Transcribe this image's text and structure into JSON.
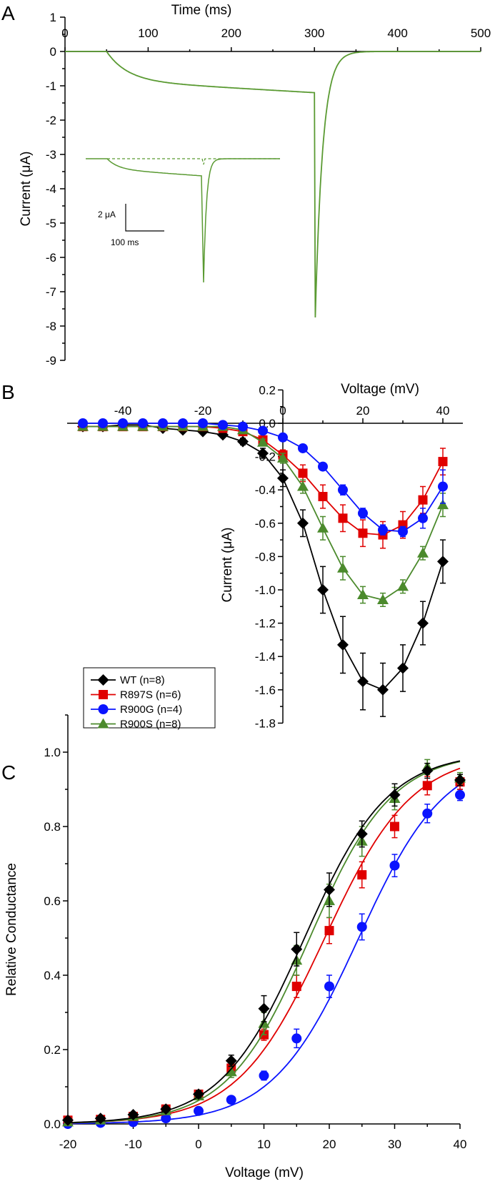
{
  "colors": {
    "WT": "#000000",
    "R897S": "#e00000",
    "R900G": "#0a14ff",
    "R900S": "#4b8a2c",
    "trace": "#5a9a32"
  },
  "chart_data": [
    {
      "panel": "A",
      "type": "line",
      "xlabel": "Time (ms)",
      "ylabel": "Current  (μA)",
      "xlim": [
        0,
        500
      ],
      "ylim": [
        -9,
        1
      ],
      "xticks": [
        "0",
        "100",
        "200",
        "300",
        "400",
        "500"
      ],
      "yticks": [
        "1",
        "0",
        "-1",
        "-2",
        "-3",
        "-4",
        "-5",
        "-6",
        "-7",
        "-8",
        "-9"
      ],
      "trace": {
        "onset_ms": 50,
        "step_end_ms": 300,
        "current_at_100ms": -0.85,
        "current_at_300ms": -1.2,
        "tail_peak": -7.75
      },
      "inset": {
        "scale_y_label": "2 μA",
        "scale_x_label": "100 ms"
      }
    },
    {
      "panel": "B",
      "type": "line",
      "xlabel": "Voltage (mV)",
      "ylabel": "Current (μA)",
      "xlim": [
        -50,
        45
      ],
      "ylim": [
        -1.8,
        0.2
      ],
      "xticks": [
        "-40",
        "-20",
        "0",
        "20",
        "40"
      ],
      "yticks": [
        "0.2",
        "0.0",
        "-0.2",
        "-0.4",
        "-0.6",
        "-0.8",
        "-1.0",
        "-1.2",
        "-1.4",
        "-1.6",
        "-1.8"
      ],
      "x": [
        -50,
        -45,
        -40,
        -35,
        -30,
        -25,
        -20,
        -15,
        -10,
        -5,
        0,
        5,
        10,
        15,
        20,
        25,
        30,
        35,
        40
      ],
      "legend_position": "bottom-left",
      "series": [
        {
          "name": "WT (n=8)",
          "key": "WT",
          "marker": "diamond",
          "values": [
            -0.02,
            -0.02,
            -0.01,
            -0.01,
            -0.03,
            -0.04,
            -0.05,
            -0.07,
            -0.11,
            -0.18,
            -0.33,
            -0.6,
            -1.0,
            -1.33,
            -1.55,
            -1.6,
            -1.47,
            -1.2,
            -0.83
          ],
          "errors": [
            0.01,
            0.01,
            0.01,
            0.01,
            0.01,
            0.01,
            0.01,
            0.01,
            0.02,
            0.03,
            0.05,
            0.08,
            0.14,
            0.17,
            0.17,
            0.16,
            0.14,
            0.13,
            0.13
          ]
        },
        {
          "name": "R897S (n=6)",
          "key": "R897S",
          "marker": "square",
          "values": [
            -0.02,
            -0.02,
            -0.02,
            -0.02,
            -0.02,
            -0.02,
            -0.02,
            -0.03,
            -0.05,
            -0.1,
            -0.19,
            -0.3,
            -0.44,
            -0.57,
            -0.66,
            -0.67,
            -0.61,
            -0.46,
            -0.23
          ],
          "errors": [
            0.01,
            0.01,
            0.01,
            0.01,
            0.01,
            0.01,
            0.01,
            0.01,
            0.01,
            0.02,
            0.03,
            0.05,
            0.07,
            0.08,
            0.08,
            0.08,
            0.08,
            0.08,
            0.08
          ]
        },
        {
          "name": "R900G (n=4)",
          "key": "R900G",
          "marker": "circle",
          "values": [
            0,
            0,
            0,
            0,
            0,
            0,
            0,
            -0.01,
            -0.02,
            -0.045,
            -0.085,
            -0.15,
            -0.26,
            -0.4,
            -0.54,
            -0.64,
            -0.65,
            -0.57,
            -0.38
          ],
          "errors": [
            0.005,
            0.005,
            0.005,
            0.005,
            0.005,
            0.005,
            0.005,
            0.005,
            0.01,
            0.01,
            0.01,
            0.01,
            0.02,
            0.03,
            0.03,
            0.03,
            0.03,
            0.06,
            0.1
          ]
        },
        {
          "name": "R900S (n=8)",
          "key": "R900S",
          "marker": "triangle",
          "values": [
            -0.02,
            -0.02,
            -0.02,
            -0.02,
            -0.02,
            -0.02,
            -0.02,
            -0.02,
            -0.04,
            -0.115,
            -0.21,
            -0.38,
            -0.63,
            -0.87,
            -1.03,
            -1.06,
            -0.98,
            -0.78,
            -0.49
          ],
          "errors": [
            0.01,
            0.01,
            0.01,
            0.01,
            0.01,
            0.01,
            0.01,
            0.01,
            0.01,
            0.02,
            0.03,
            0.04,
            0.07,
            0.07,
            0.05,
            0.04,
            0.04,
            0.04,
            0.07
          ]
        }
      ]
    },
    {
      "panel": "C",
      "type": "scatter",
      "xlabel": "Voltage (mV)",
      "ylabel": "Relative Conductance",
      "xlim": [
        -20,
        40
      ],
      "ylim": [
        0,
        1.1
      ],
      "xticks": [
        "-20",
        "-10",
        "0",
        "10",
        "20",
        "30",
        "40"
      ],
      "yticks": [
        "0.0",
        "0.2",
        "0.4",
        "0.6",
        "0.8",
        "1.0"
      ],
      "x": [
        -20,
        -15,
        -10,
        -5,
        0,
        5,
        10,
        15,
        20,
        25,
        30,
        35,
        40
      ],
      "series": [
        {
          "key": "WT",
          "marker": "diamond",
          "fit": {
            "v_half": 16.2,
            "k": 6.4
          },
          "values": [
            0.01,
            0.015,
            0.025,
            0.04,
            0.08,
            0.17,
            0.31,
            0.47,
            0.63,
            0.78,
            0.885,
            0.95,
            0.925
          ],
          "errors": [
            0.005,
            0.005,
            0.005,
            0.008,
            0.01,
            0.015,
            0.035,
            0.045,
            0.045,
            0.035,
            0.03,
            0.02,
            0.015
          ]
        },
        {
          "key": "R897S",
          "marker": "square",
          "fit": {
            "v_half": 19.3,
            "k": 6.7
          },
          "values": [
            0.01,
            0.012,
            0.02,
            0.04,
            0.08,
            0.15,
            0.24,
            0.37,
            0.52,
            0.67,
            0.8,
            0.91,
            0.92
          ],
          "errors": [
            0.005,
            0.005,
            0.005,
            0.008,
            0.01,
            0.01,
            0.015,
            0.03,
            0.035,
            0.035,
            0.03,
            0.025,
            0.02
          ]
        },
        {
          "key": "R900G",
          "marker": "circle",
          "fit": {
            "v_half": 24.5,
            "k": 6.6
          },
          "values": [
            0.0,
            0.003,
            0.005,
            0.015,
            0.035,
            0.065,
            0.13,
            0.23,
            0.37,
            0.53,
            0.695,
            0.835,
            0.885
          ],
          "errors": [
            0.003,
            0.003,
            0.003,
            0.005,
            0.005,
            0.008,
            0.012,
            0.025,
            0.03,
            0.035,
            0.03,
            0.025,
            0.015
          ]
        },
        {
          "key": "R900S",
          "marker": "triangle",
          "fit": {
            "v_half": 17.0,
            "k": 6.3
          },
          "values": [
            0.005,
            0.01,
            0.02,
            0.035,
            0.075,
            0.14,
            0.27,
            0.44,
            0.6,
            0.76,
            0.875,
            0.96,
            0.93
          ],
          "errors": [
            0.005,
            0.005,
            0.005,
            0.008,
            0.01,
            0.015,
            0.03,
            0.04,
            0.045,
            0.04,
            0.03,
            0.02,
            0.015
          ]
        }
      ]
    }
  ],
  "panel_labels": [
    "A",
    "B",
    "C"
  ]
}
